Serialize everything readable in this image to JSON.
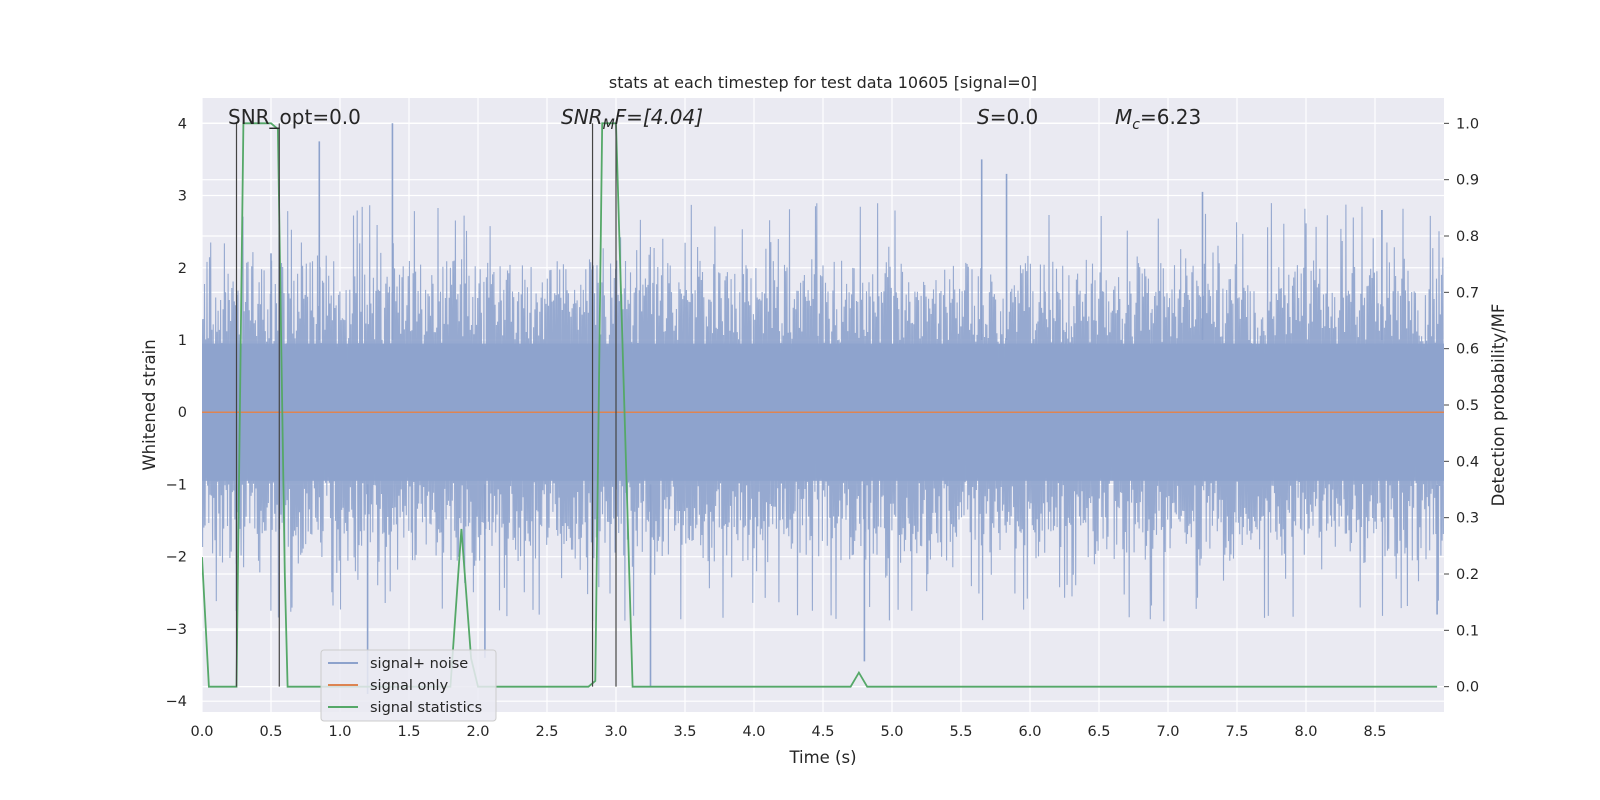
{
  "chart_data": {
    "type": "line",
    "title": "stats at each timestep for test data 10605 [signal=0]",
    "xlabel": "Time (s)",
    "ylabel_left": "Whitened strain",
    "ylabel_right": "Detection probability/MF",
    "xlim": [
      0.0,
      9.0
    ],
    "ylim_left": [
      -4.15,
      4.35
    ],
    "ylim_right": [
      -0.045,
      1.045
    ],
    "x_ticks": [
      "0.0",
      "0.5",
      "1.0",
      "1.5",
      "2.0",
      "2.5",
      "3.0",
      "3.5",
      "4.0",
      "4.5",
      "5.0",
      "5.5",
      "6.0",
      "6.5",
      "7.0",
      "7.5",
      "8.0",
      "8.5"
    ],
    "y_ticks_left": [
      "−4",
      "−3",
      "−2",
      "−1",
      "0",
      "1",
      "2",
      "3",
      "4"
    ],
    "y_ticks_right": [
      "0.0",
      "0.1",
      "0.2",
      "0.3",
      "0.4",
      "0.5",
      "0.6",
      "0.7",
      "0.8",
      "0.9",
      "1.0"
    ],
    "grid": true,
    "legend_position": "lower-left",
    "colors": {
      "signal_noise": "#8da2cc",
      "signal_only": "#dd8452",
      "signal_statistics": "#55a868",
      "markers": "#444444",
      "background": "#eaeaf2",
      "grid": "#ffffff"
    },
    "annotations": {
      "snr_opt": "SNR_opt=0.0",
      "snr_mf_label": "SNR",
      "snr_mf_sub": "M",
      "snr_mf_value": "F=[4.04]",
      "s_label": "S",
      "s_value": "=0.0",
      "mc_label": "M",
      "mc_sub": "c",
      "mc_value": "=6.23"
    },
    "series": [
      {
        "name": "signal+ noise",
        "style": "dense noise trace, approx. ±1.5 band with spikes up to ~4.0 and down to ~-3.9",
        "peaks": [
          [
            0.5,
            2.2
          ],
          [
            0.85,
            3.75
          ],
          [
            1.38,
            4.0
          ],
          [
            5.65,
            3.5
          ],
          [
            5.83,
            3.3
          ],
          [
            7.25,
            3.05
          ],
          [
            8.55,
            2.8
          ]
        ],
        "troughs": [
          [
            0.25,
            -2.75
          ],
          [
            1.2,
            -3.9
          ],
          [
            2.05,
            -3.4
          ],
          [
            3.25,
            -3.8
          ],
          [
            4.8,
            -3.45
          ],
          [
            8.95,
            -2.8
          ]
        ]
      },
      {
        "name": "signal only",
        "x": [
          0.0,
          9.0
        ],
        "y": [
          0.0,
          0.0
        ]
      },
      {
        "name": "signal statistics",
        "axis": "right",
        "x": [
          0.0,
          0.05,
          0.25,
          0.3,
          0.5,
          0.55,
          0.6,
          0.62,
          1.8,
          1.88,
          1.95,
          2.0,
          2.8,
          2.85,
          2.9,
          3.0,
          3.12,
          3.3,
          4.7,
          4.76,
          4.82,
          4.9,
          8.7,
          8.95
        ],
        "y": [
          0.23,
          0.0,
          0.0,
          1.0,
          1.0,
          0.99,
          0.2,
          0.0,
          0.0,
          0.28,
          0.05,
          0.0,
          0.0,
          0.01,
          1.0,
          1.0,
          0.0,
          0.0,
          0.0,
          0.025,
          0.0,
          0.0,
          0.0,
          0.0
        ]
      }
    ],
    "marker_lines_x": [
      0.25,
      0.56,
      2.83,
      3.0
    ]
  }
}
